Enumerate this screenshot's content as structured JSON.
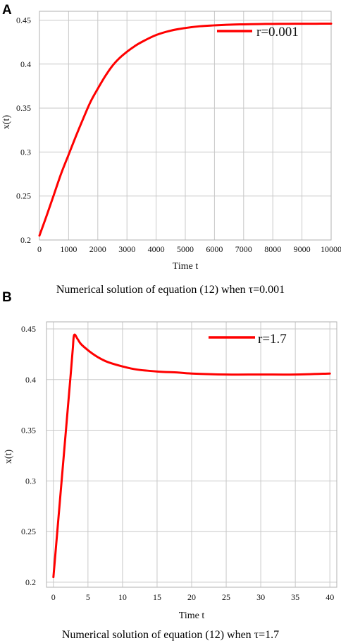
{
  "chart_data": [
    {
      "panel_label": "A",
      "type": "line",
      "xlabel": "Time t",
      "ylabel": "x(t)",
      "xlim": [
        0,
        10000
      ],
      "ylim": [
        0.2,
        0.46
      ],
      "xticks": [
        0,
        1000,
        2000,
        3000,
        4000,
        5000,
        6000,
        7000,
        8000,
        9000,
        10000
      ],
      "yticks": [
        0.2,
        0.25,
        0.3,
        0.35,
        0.4,
        0.45
      ],
      "grid": true,
      "legend_position": "top-right",
      "caption": "Numerical solution of equation (12) when τ=0.001",
      "series": [
        {
          "name": "r=0.001",
          "color": "#ff0000",
          "x": [
            0,
            250,
            500,
            750,
            1000,
            1250,
            1500,
            1750,
            2000,
            2250,
            2500,
            2750,
            3000,
            3250,
            3500,
            4000,
            4500,
            5000,
            5500,
            6000,
            6500,
            7000,
            7500,
            8000,
            8500,
            9000,
            9500,
            10000
          ],
          "y": [
            0.205,
            0.228,
            0.252,
            0.276,
            0.297,
            0.318,
            0.338,
            0.357,
            0.372,
            0.386,
            0.398,
            0.407,
            0.414,
            0.42,
            0.425,
            0.433,
            0.438,
            0.441,
            0.443,
            0.444,
            0.4448,
            0.4452,
            0.4455,
            0.4457,
            0.4458,
            0.4459,
            0.4459,
            0.446
          ]
        }
      ]
    },
    {
      "panel_label": "B",
      "type": "line",
      "xlabel": "Time t",
      "ylabel": "x(t)",
      "xlim": [
        -1,
        41
      ],
      "ylim": [
        0.195,
        0.457
      ],
      "xticks": [
        0,
        5,
        10,
        15,
        20,
        25,
        30,
        35,
        40
      ],
      "yticks": [
        0.2,
        0.25,
        0.3,
        0.35,
        0.4,
        0.45
      ],
      "grid": true,
      "legend_position": "top-right",
      "caption": "Numerical solution of equation (12) when τ=1.7",
      "series": [
        {
          "name": "r=1.7",
          "color": "#ff0000",
          "x": [
            0,
            0.5,
            1,
            1.5,
            2,
            2.5,
            2.8,
            3,
            3.5,
            4,
            5,
            6,
            7,
            8,
            10,
            12,
            15,
            18,
            20,
            25,
            30,
            35,
            40
          ],
          "y": [
            0.205,
            0.245,
            0.285,
            0.325,
            0.365,
            0.405,
            0.43,
            0.444,
            0.44,
            0.435,
            0.429,
            0.424,
            0.42,
            0.417,
            0.413,
            0.41,
            0.408,
            0.407,
            0.406,
            0.405,
            0.405,
            0.405,
            0.406
          ]
        }
      ]
    }
  ]
}
